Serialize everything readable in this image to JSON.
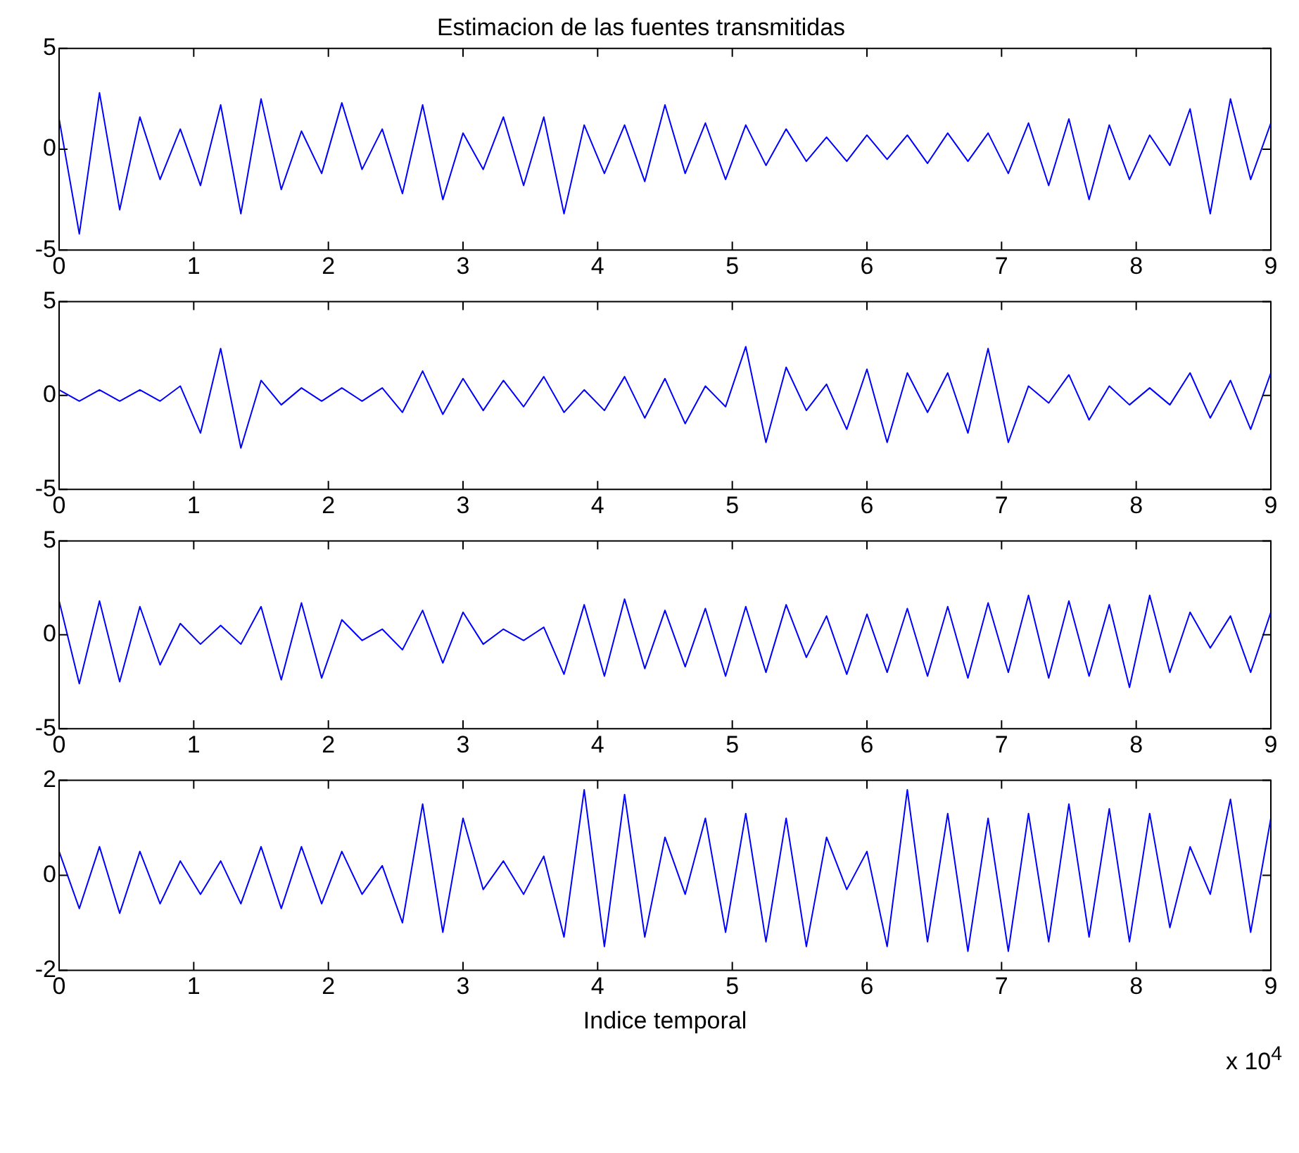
{
  "chart_data": [
    {
      "type": "line",
      "title": "Estimacion de las fuentes transmitidas",
      "xlim": [
        0,
        9
      ],
      "xticks": [
        0,
        1,
        2,
        3,
        4,
        5,
        6,
        7,
        8,
        9
      ],
      "ylim": [
        -5,
        5
      ],
      "yticks": [
        -5,
        0,
        5
      ],
      "x": [
        0,
        0.15,
        0.3,
        0.45,
        0.6,
        0.75,
        0.9,
        1.05,
        1.2,
        1.35,
        1.5,
        1.65,
        1.8,
        1.95,
        2.1,
        2.25,
        2.4,
        2.55,
        2.7,
        2.85,
        3,
        3.15,
        3.3,
        3.45,
        3.6,
        3.75,
        3.9,
        4.05,
        4.2,
        4.35,
        4.5,
        4.65,
        4.8,
        4.95,
        5.1,
        5.25,
        5.4,
        5.55,
        5.7,
        5.85,
        6,
        6.15,
        6.3,
        6.45,
        6.6,
        6.75,
        6.9,
        7.05,
        7.2,
        7.35,
        7.5,
        7.65,
        7.8,
        7.95,
        8.1,
        8.25,
        8.4,
        8.55,
        8.7,
        8.85,
        9
      ],
      "series": [
        {
          "color": "#0000ff",
          "values": [
            1.5,
            -4.2,
            2.8,
            -3,
            1.6,
            -1.5,
            1,
            -1.8,
            2.2,
            -3.2,
            2.5,
            -2,
            0.9,
            -1.2,
            2.3,
            -1,
            1,
            -2.2,
            2.2,
            -2.5,
            0.8,
            -1,
            1.6,
            -1.8,
            1.6,
            -3.2,
            1.2,
            -1.2,
            1.2,
            -1.6,
            2.2,
            -1.2,
            1.3,
            -1.5,
            1.2,
            -0.8,
            1,
            -0.6,
            0.6,
            -0.6,
            0.7,
            -0.5,
            0.7,
            -0.7,
            0.8,
            -0.6,
            0.8,
            -1.2,
            1.3,
            -1.8,
            1.5,
            -2.5,
            1.2,
            -1.5,
            0.7,
            -0.8,
            2,
            -3.2,
            2.5,
            -1.5,
            1.3
          ]
        }
      ]
    },
    {
      "type": "line",
      "xlim": [
        0,
        9
      ],
      "xticks": [
        0,
        1,
        2,
        3,
        4,
        5,
        6,
        7,
        8,
        9
      ],
      "ylim": [
        -5,
        5
      ],
      "yticks": [
        -5,
        0,
        5
      ],
      "x": [
        0,
        0.15,
        0.3,
        0.45,
        0.6,
        0.75,
        0.9,
        1.05,
        1.2,
        1.35,
        1.5,
        1.65,
        1.8,
        1.95,
        2.1,
        2.25,
        2.4,
        2.55,
        2.7,
        2.85,
        3,
        3.15,
        3.3,
        3.45,
        3.6,
        3.75,
        3.9,
        4.05,
        4.2,
        4.35,
        4.5,
        4.65,
        4.8,
        4.95,
        5.1,
        5.25,
        5.4,
        5.55,
        5.7,
        5.85,
        6,
        6.15,
        6.3,
        6.45,
        6.6,
        6.75,
        6.9,
        7.05,
        7.2,
        7.35,
        7.5,
        7.65,
        7.8,
        7.95,
        8.1,
        8.25,
        8.4,
        8.55,
        8.7,
        8.85,
        9
      ],
      "series": [
        {
          "color": "#0000ff",
          "values": [
            0.3,
            -0.3,
            0.3,
            -0.3,
            0.3,
            -0.3,
            0.5,
            -2,
            2.5,
            -2.8,
            0.8,
            -0.5,
            0.4,
            -0.3,
            0.4,
            -0.3,
            0.4,
            -0.9,
            1.3,
            -1,
            0.9,
            -0.8,
            0.8,
            -0.6,
            1,
            -0.9,
            0.3,
            -0.8,
            1,
            -1.2,
            0.9,
            -1.5,
            0.5,
            -0.6,
            2.6,
            -2.5,
            1.5,
            -0.8,
            0.6,
            -1.8,
            1.4,
            -2.5,
            1.2,
            -0.9,
            1.2,
            -2,
            2.5,
            -2.5,
            0.5,
            -0.4,
            1.1,
            -1.3,
            0.5,
            -0.5,
            0.4,
            -0.5,
            1.2,
            -1.2,
            0.8,
            -1.8,
            1.2
          ]
        }
      ]
    },
    {
      "type": "line",
      "xlim": [
        0,
        9
      ],
      "xticks": [
        0,
        1,
        2,
        3,
        4,
        5,
        6,
        7,
        8,
        9
      ],
      "ylim": [
        -5,
        5
      ],
      "yticks": [
        -5,
        0,
        5
      ],
      "x": [
        0,
        0.15,
        0.3,
        0.45,
        0.6,
        0.75,
        0.9,
        1.05,
        1.2,
        1.35,
        1.5,
        1.65,
        1.8,
        1.95,
        2.1,
        2.25,
        2.4,
        2.55,
        2.7,
        2.85,
        3,
        3.15,
        3.3,
        3.45,
        3.6,
        3.75,
        3.9,
        4.05,
        4.2,
        4.35,
        4.5,
        4.65,
        4.8,
        4.95,
        5.1,
        5.25,
        5.4,
        5.55,
        5.7,
        5.85,
        6,
        6.15,
        6.3,
        6.45,
        6.6,
        6.75,
        6.9,
        7.05,
        7.2,
        7.35,
        7.5,
        7.65,
        7.8,
        7.95,
        8.1,
        8.25,
        8.4,
        8.55,
        8.7,
        8.85,
        9
      ],
      "series": [
        {
          "color": "#0000ff",
          "values": [
            1.8,
            -2.6,
            1.8,
            -2.5,
            1.5,
            -1.6,
            0.6,
            -0.5,
            0.5,
            -0.5,
            1.5,
            -2.4,
            1.7,
            -2.3,
            0.8,
            -0.3,
            0.3,
            -0.8,
            1.3,
            -1.5,
            1.2,
            -0.5,
            0.3,
            -0.3,
            0.4,
            -2.1,
            1.6,
            -2.2,
            1.9,
            -1.8,
            1.3,
            -1.7,
            1.4,
            -2.2,
            1.5,
            -2,
            1.6,
            -1.2,
            1,
            -2.1,
            1.1,
            -2,
            1.4,
            -2.2,
            1.5,
            -2.3,
            1.7,
            -2,
            2.1,
            -2.3,
            1.8,
            -2.2,
            1.6,
            -2.8,
            2.1,
            -2,
            1.2,
            -0.7,
            1,
            -2,
            1.2
          ]
        }
      ]
    },
    {
      "type": "line",
      "xlabel": "Indice temporal",
      "annotations": [
        "x 10$^{4}$"
      ],
      "xlim": [
        0,
        9
      ],
      "xticks": [
        0,
        1,
        2,
        3,
        4,
        5,
        6,
        7,
        8,
        9
      ],
      "ylim": [
        -2,
        2
      ],
      "yticks": [
        -2,
        0,
        2
      ],
      "x": [
        0,
        0.15,
        0.3,
        0.45,
        0.6,
        0.75,
        0.9,
        1.05,
        1.2,
        1.35,
        1.5,
        1.65,
        1.8,
        1.95,
        2.1,
        2.25,
        2.4,
        2.55,
        2.7,
        2.85,
        3,
        3.15,
        3.3,
        3.45,
        3.6,
        3.75,
        3.9,
        4.05,
        4.2,
        4.35,
        4.5,
        4.65,
        4.8,
        4.95,
        5.1,
        5.25,
        5.4,
        5.55,
        5.7,
        5.85,
        6,
        6.15,
        6.3,
        6.45,
        6.6,
        6.75,
        6.9,
        7.05,
        7.2,
        7.35,
        7.5,
        7.65,
        7.8,
        7.95,
        8.1,
        8.25,
        8.4,
        8.55,
        8.7,
        8.85,
        9
      ],
      "series": [
        {
          "color": "#0000ff",
          "values": [
            0.5,
            -0.7,
            0.6,
            -0.8,
            0.5,
            -0.6,
            0.3,
            -0.4,
            0.3,
            -0.6,
            0.6,
            -0.7,
            0.6,
            -0.6,
            0.5,
            -0.4,
            0.2,
            -1,
            1.5,
            -1.2,
            1.2,
            -0.3,
            0.3,
            -0.4,
            0.4,
            -1.3,
            1.8,
            -1.5,
            1.7,
            -1.3,
            0.8,
            -0.4,
            1.2,
            -1.2,
            1.3,
            -1.4,
            1.2,
            -1.5,
            0.8,
            -0.3,
            0.5,
            -1.5,
            1.8,
            -1.4,
            1.3,
            -1.6,
            1.2,
            -1.6,
            1.3,
            -1.4,
            1.5,
            -1.3,
            1.4,
            -1.4,
            1.3,
            -1.1,
            0.6,
            -0.4,
            1.6,
            -1.2,
            1.2
          ]
        }
      ]
    }
  ]
}
